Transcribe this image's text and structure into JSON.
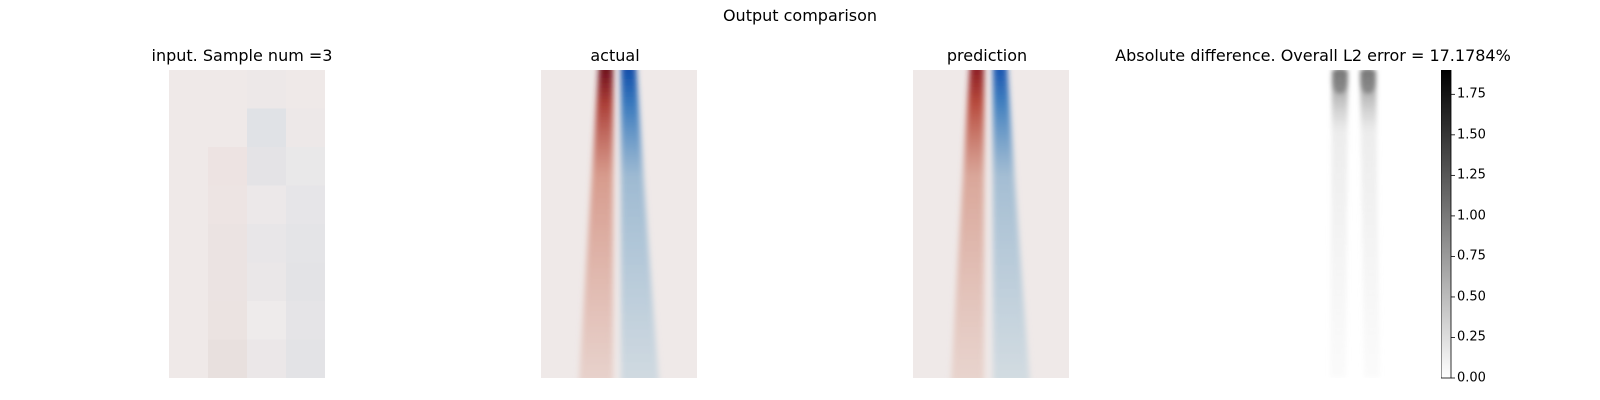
{
  "figure": {
    "suptitle": "Output comparison"
  },
  "panels": [
    {
      "id": "input",
      "title": "input. Sample num =3"
    },
    {
      "id": "actual",
      "title": "actual"
    },
    {
      "id": "prediction",
      "title": "prediction"
    },
    {
      "id": "difference",
      "title": "Absolute difference. Overall L2 error = 17.1784%"
    }
  ],
  "chart_data": {
    "type": "heatmap",
    "title": "Output comparison",
    "input_grid": {
      "cols": 4,
      "rows": 8,
      "colors": [
        [
          "#efe9e8",
          "#efe9e8",
          "#ede8e8",
          "#efe9e8"
        ],
        [
          "#efe9e8",
          "#efe9e8",
          "#e0e2e6",
          "#ede8e8"
        ],
        [
          "#efe9e8",
          "#ede3e2",
          "#e4e3e6",
          "#e9e8e9"
        ],
        [
          "#efe9e8",
          "#ede4e3",
          "#ece8e9",
          "#e6e5e8"
        ],
        [
          "#efe9e8",
          "#ebe3e2",
          "#e8e6e8",
          "#e4e4e7"
        ],
        [
          "#efe9e8",
          "#ebe3e2",
          "#eae7e8",
          "#e3e3e6"
        ],
        [
          "#efe9e8",
          "#ebe3e1",
          "#eeebeb",
          "#e5e4e7"
        ],
        [
          "#efe9e8",
          "#e8e0de",
          "#ebe7e8",
          "#e3e3e6"
        ]
      ]
    },
    "field_colors": {
      "background": "#efe9e8",
      "red_peak": "#6a0d1b",
      "blue_peak": "#0f4aa8",
      "red_faint": "#e6c9c2",
      "blue_faint": "#c5d6df"
    },
    "colorbar": {
      "cmap": "gray_r",
      "range": [
        0.0,
        1.9
      ],
      "ticks": [
        "0.00",
        "0.25",
        "0.50",
        "0.75",
        "1.00",
        "1.25",
        "1.50",
        "1.75"
      ],
      "tick_values": [
        0.0,
        0.25,
        0.5,
        0.75,
        1.0,
        1.25,
        1.5,
        1.75
      ]
    }
  }
}
